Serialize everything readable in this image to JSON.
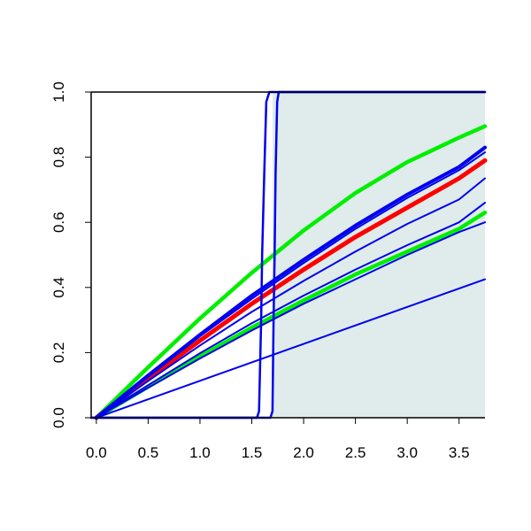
{
  "chart_data": {
    "type": "line",
    "title": "",
    "xlabel": "",
    "ylabel": "",
    "xlim": [
      -0.05,
      3.75
    ],
    "ylim": [
      0,
      1
    ],
    "xticks": [
      "0.0",
      "0.5",
      "1.0",
      "1.5",
      "2.0",
      "2.5",
      "3.0",
      "3.5"
    ],
    "yticks": [
      "0.0",
      "0.2",
      "0.4",
      "0.6",
      "0.8",
      "1.0"
    ],
    "grid": false,
    "legend": "none",
    "shaded_region": {
      "x_from": 1.7,
      "x_to": 3.75,
      "y_from": 0,
      "y_to": 1,
      "color": "#dfeceb"
    },
    "series": [
      {
        "color": "#00ee00",
        "width": 4.5,
        "x": [
          0,
          0.5,
          1,
          1.5,
          2,
          2.5,
          3,
          3.5,
          3.75
        ],
        "y": [
          0,
          0.155,
          0.305,
          0.445,
          0.575,
          0.69,
          0.785,
          0.86,
          0.895
        ]
      },
      {
        "color": "#00ee00",
        "width": 4.5,
        "x": [
          0,
          0.5,
          1,
          1.5,
          2,
          2.5,
          3,
          3.5,
          3.75
        ],
        "y": [
          0,
          0.095,
          0.188,
          0.277,
          0.36,
          0.44,
          0.51,
          0.58,
          0.63
        ]
      },
      {
        "color": "#ff0000",
        "width": 5,
        "x": [
          0,
          0.5,
          1,
          1.5,
          2,
          2.5,
          3,
          3.5,
          3.75
        ],
        "y": [
          0,
          0.12,
          0.237,
          0.35,
          0.455,
          0.555,
          0.645,
          0.735,
          0.79
        ]
      },
      {
        "color": "#0000ee",
        "width": 4,
        "x": [
          0,
          0.5,
          1,
          1.5,
          2,
          2.5,
          3,
          3.5,
          3.75
        ],
        "y": [
          0,
          0.13,
          0.255,
          0.375,
          0.485,
          0.59,
          0.685,
          0.77,
          0.83
        ]
      },
      {
        "color": "#0000ee",
        "width": 2,
        "x": [
          0,
          0.5,
          1,
          1.5,
          2,
          2.5,
          3,
          3.5,
          3.75
        ],
        "y": [
          0,
          0.125,
          0.25,
          0.365,
          0.475,
          0.58,
          0.675,
          0.76,
          0.815
        ]
      },
      {
        "color": "#0000ee",
        "width": 2,
        "x": [
          0,
          0.5,
          1,
          1.5,
          2,
          2.5,
          3,
          3.5,
          3.75
        ],
        "y": [
          0,
          0.113,
          0.222,
          0.325,
          0.42,
          0.51,
          0.595,
          0.67,
          0.735
        ]
      },
      {
        "color": "#0000ee",
        "width": 2,
        "x": [
          0,
          0.5,
          1,
          1.5,
          2,
          2.5,
          3,
          3.5,
          3.75
        ],
        "y": [
          0,
          0.1,
          0.198,
          0.29,
          0.375,
          0.455,
          0.53,
          0.6,
          0.66
        ]
      },
      {
        "color": "#0000ee",
        "width": 2,
        "x": [
          0,
          0.5,
          1,
          1.5,
          2,
          2.5,
          3,
          3.5,
          3.75
        ],
        "y": [
          0,
          0.092,
          0.182,
          0.268,
          0.35,
          0.425,
          0.5,
          0.57,
          0.6
        ]
      },
      {
        "color": "#0000ee",
        "width": 2,
        "x": [
          0,
          3.75
        ],
        "y": [
          0,
          0.425
        ]
      },
      {
        "color": "#0000ee",
        "width": 2.5,
        "x": [
          -0.05,
          1.55,
          1.57,
          1.59,
          1.6,
          1.62,
          1.64,
          1.67,
          3.75
        ],
        "y": [
          0,
          0,
          0.02,
          0.3,
          0.5,
          0.75,
          0.97,
          1,
          1
        ]
      },
      {
        "color": "#0000ee",
        "width": 2.5,
        "x": [
          -0.05,
          1.68,
          1.7,
          1.71,
          1.72,
          1.73,
          1.745,
          1.76,
          3.75
        ],
        "y": [
          0,
          0,
          0.02,
          0.3,
          0.5,
          0.75,
          0.97,
          1,
          1
        ]
      }
    ]
  }
}
